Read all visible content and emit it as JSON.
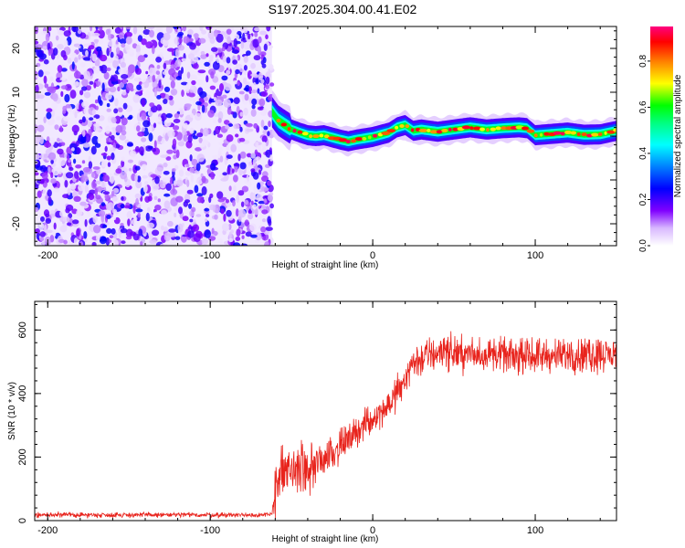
{
  "title": "S197.2025.304.00.41.E02",
  "chart_data": [
    {
      "type": "heatmap",
      "title": "S197.2025.304.00.41.E02",
      "xlabel": "Height of straight line (km)",
      "ylabel": "Frequency (Hz)",
      "xlim": [
        -208,
        150
      ],
      "ylim": [
        -25,
        25
      ],
      "x_ticks": [
        -200,
        -100,
        0,
        100
      ],
      "x_tick_labels": [
        "-200",
        "-100",
        "0",
        "100"
      ],
      "y_ticks": [
        -20,
        -10,
        0,
        10,
        20
      ],
      "y_tick_labels": [
        "-20",
        "-10",
        "0",
        "10",
        "20"
      ],
      "noise_region_x": [
        -208,
        -62
      ],
      "ridge": {
        "x": [
          -62,
          -58,
          -54,
          -50,
          -45,
          -40,
          -35,
          -30,
          -25,
          -20,
          -15,
          -10,
          -5,
          0,
          5,
          10,
          15,
          20,
          25,
          30,
          40,
          50,
          60,
          70,
          80,
          90,
          95,
          100,
          110,
          120,
          130,
          140,
          150
        ],
        "freq": [
          5.5,
          3.5,
          2.5,
          1.5,
          0.8,
          0.2,
          0.0,
          0.2,
          -0.3,
          -0.8,
          -1.2,
          -0.8,
          -0.5,
          -0.2,
          0.3,
          0.8,
          2.0,
          2.5,
          1.2,
          1.5,
          1.0,
          1.5,
          2.0,
          1.5,
          1.8,
          2.0,
          1.8,
          0.2,
          0.5,
          0.8,
          0.3,
          0.4,
          1.2
        ]
      },
      "colorbar": {
        "label": "Normalized spectral amplitude",
        "range": [
          0.0,
          0.95
        ],
        "ticks": [
          0.0,
          0.2,
          0.4,
          0.6,
          0.8
        ],
        "tick_labels": [
          "0.0",
          "0.2",
          "0.4",
          "0.6",
          "0.8"
        ]
      }
    },
    {
      "type": "line",
      "xlabel": "Height of straight line (km)",
      "ylabel": "SNR (10 * v/v)",
      "xlim": [
        -208,
        150
      ],
      "ylim": [
        0,
        690
      ],
      "x_ticks": [
        -200,
        -100,
        0,
        100
      ],
      "x_tick_labels": [
        "-200",
        "-100",
        "0",
        "100"
      ],
      "y_ticks": [
        0,
        200,
        400,
        600
      ],
      "y_tick_labels": [
        "0",
        "200",
        "400",
        "600"
      ],
      "series": [
        {
          "name": "SNR",
          "color": "#e8231c",
          "x": [
            -208,
            -150,
            -100,
            -62,
            -60,
            -55,
            -50,
            -45,
            -40,
            -35,
            -30,
            -20,
            -10,
            0,
            10,
            18,
            20,
            25,
            30,
            40,
            50,
            60,
            70,
            80,
            90,
            100,
            110,
            120,
            130,
            140,
            150
          ],
          "mean": [
            18,
            18,
            18,
            18,
            120,
            140,
            160,
            160,
            150,
            175,
            200,
            230,
            280,
            320,
            370,
            420,
            460,
            500,
            510,
            530,
            530,
            520,
            525,
            520,
            515,
            520,
            515,
            520,
            520,
            525,
            520
          ],
          "noise": [
            8,
            8,
            8,
            8,
            90,
            80,
            70,
            70,
            90,
            60,
            55,
            50,
            45,
            45,
            45,
            50,
            55,
            55,
            60,
            60,
            55,
            50,
            50,
            50,
            50,
            50,
            50,
            50,
            55,
            55,
            55
          ]
        }
      ]
    }
  ]
}
